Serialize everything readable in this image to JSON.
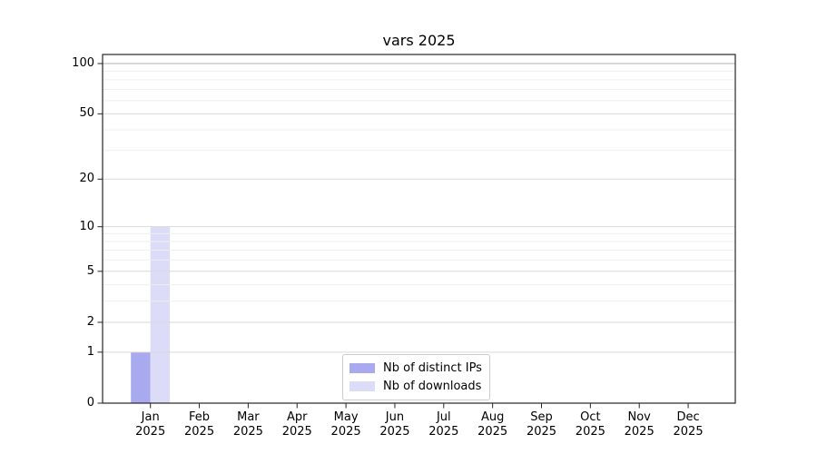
{
  "figure": {
    "title": "vars 2025",
    "background": "#ffffff"
  },
  "chart_data": {
    "type": "bar",
    "title": "vars 2025",
    "x_tick_months": [
      "Jan",
      "Feb",
      "Mar",
      "Apr",
      "May",
      "Jun",
      "Jul",
      "Aug",
      "Sep",
      "Oct",
      "Nov",
      "Dec"
    ],
    "x_tick_year": "2025",
    "y_ticks": [
      0,
      1,
      2,
      5,
      10,
      20,
      50,
      100
    ],
    "y_scale": "log1p",
    "ylim": [
      0,
      113
    ],
    "grid": true,
    "series": [
      {
        "name": "Nb of distinct IPs",
        "color": "#a9a9f0",
        "values": [
          1,
          0,
          0,
          0,
          0,
          0,
          0,
          0,
          0,
          0,
          0,
          0
        ]
      },
      {
        "name": "Nb of downloads",
        "color": "#dcdcf8",
        "values": [
          10,
          0,
          0,
          0,
          0,
          0,
          0,
          0,
          0,
          0,
          0,
          0
        ]
      }
    ],
    "legend": {
      "position": "lower center",
      "entries": [
        "Nb of distinct IPs",
        "Nb of downloads"
      ]
    },
    "gridline_minor_values": [
      3,
      4,
      6,
      7,
      8,
      9,
      30,
      40,
      60,
      70,
      80,
      90
    ],
    "colors": {
      "grid_top": "#b0b0b0",
      "grid_major": "#d9d9d9",
      "grid_minor": "#efefef",
      "axis": "#262626"
    }
  }
}
